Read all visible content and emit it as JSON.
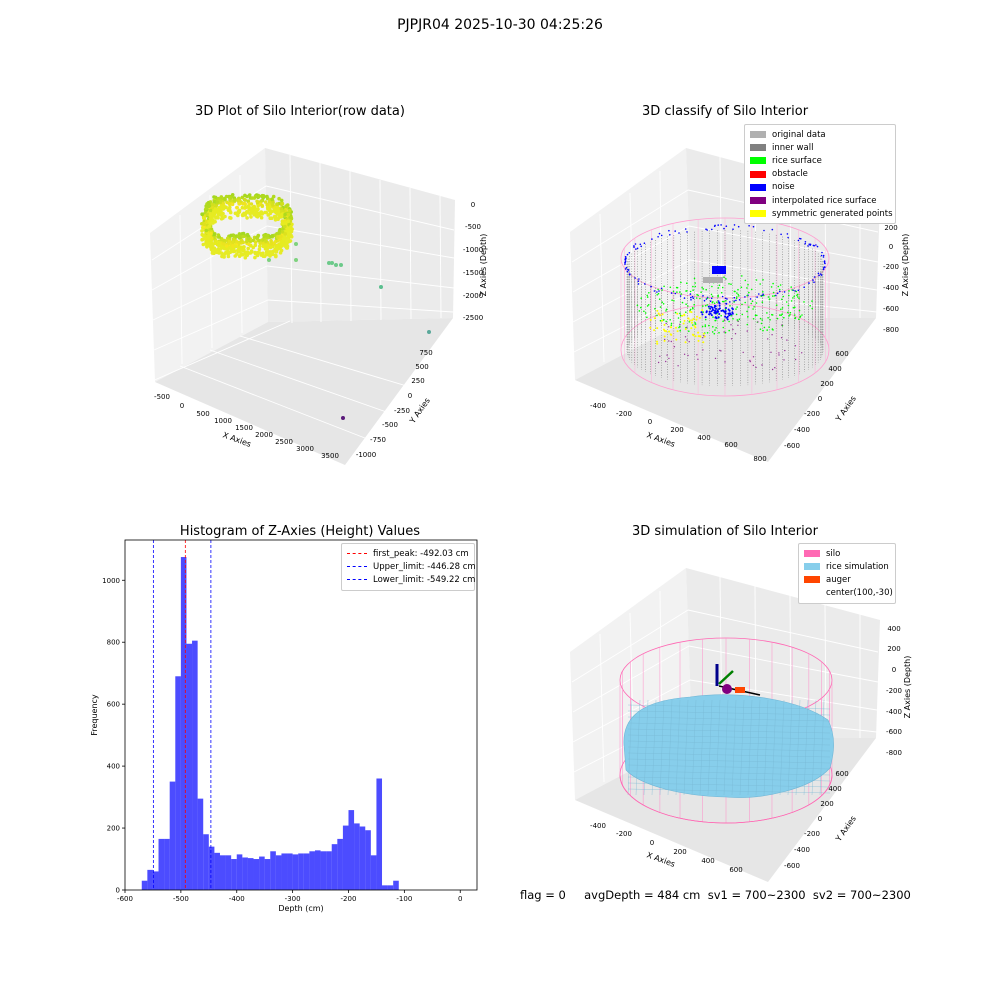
{
  "suptitle": "PJPJR04 2025-10-30 04:25:26",
  "status_text": "flag = 0     avgDepth = 484 cm  sv1 = 700~2300  sv2 = 700~2300",
  "colors": {
    "hist": "#0000ff",
    "peak": "#ff0000",
    "limit": "#0000ff",
    "silo": "#ff69b4",
    "rice": "#87ceeb",
    "auger": "#ff4500"
  },
  "chart_data": [
    {
      "type": "scatter",
      "subtype": "3d",
      "title": "3D Plot of Silo Interior(row data)",
      "xlabel": "X Axies",
      "ylabel": "Y Axies",
      "zlabel": "Z Axies (Depth)",
      "x_ticks": [
        "-500",
        "0",
        "500",
        "1000",
        "1500",
        "2000",
        "2500",
        "3000",
        "3500"
      ],
      "y_ticks": [
        "-1000",
        "-750",
        "-500",
        "-250",
        "0",
        "250",
        "500",
        "750"
      ],
      "z_ticks": [
        "-2500",
        "-2000",
        "-1500",
        "-1000",
        "-500",
        "0"
      ]
    },
    {
      "type": "scatter",
      "subtype": "3d",
      "title": "3D classify of Silo Interior",
      "xlabel": "X Axies",
      "ylabel": "Y Axies",
      "zlabel": "Z Axies (Depth)",
      "x_ticks": [
        "-400",
        "-200",
        "0",
        "200",
        "400",
        "600",
        "800"
      ],
      "y_ticks": [
        "-600",
        "-400",
        "-200",
        "0",
        "200",
        "400",
        "600"
      ],
      "z_ticks": [
        "-800",
        "-600",
        "-400",
        "-200",
        "0",
        "200"
      ],
      "legend": [
        {
          "label": "original data",
          "color": "#b0b0b0"
        },
        {
          "label": "inner wall",
          "color": "#808080"
        },
        {
          "label": "rice surface",
          "color": "#00ff00"
        },
        {
          "label": "obstacle",
          "color": "#ff0000"
        },
        {
          "label": "noise",
          "color": "#0000ff"
        },
        {
          "label": "interpolated rice surface",
          "color": "#800080"
        },
        {
          "label": "symmetric generated points",
          "color": "#ffff00"
        }
      ]
    },
    {
      "type": "bar",
      "subtype": "histogram",
      "title": "Histogram of Z-Axies (Height) Values",
      "xlabel": "Depth (cm)",
      "ylabel": "Frequency",
      "xlim": [
        -600,
        30
      ],
      "ylim": [
        0,
        1130
      ],
      "x_ticks": [
        -600,
        -500,
        -400,
        -300,
        -200,
        -100,
        0
      ],
      "y_ticks": [
        0,
        200,
        400,
        600,
        800,
        1000
      ],
      "bin_width": 10,
      "bins": [
        {
          "x": -570,
          "value": 30
        },
        {
          "x": -560,
          "value": 65
        },
        {
          "x": -550,
          "value": 60
        },
        {
          "x": -540,
          "value": 165
        },
        {
          "x": -530,
          "value": 165
        },
        {
          "x": -520,
          "value": 350
        },
        {
          "x": -510,
          "value": 690
        },
        {
          "x": -500,
          "value": 1075
        },
        {
          "x": -490,
          "value": 795
        },
        {
          "x": -480,
          "value": 805
        },
        {
          "x": -470,
          "value": 295
        },
        {
          "x": -460,
          "value": 180
        },
        {
          "x": -450,
          "value": 140
        },
        {
          "x": -440,
          "value": 120
        },
        {
          "x": -430,
          "value": 112
        },
        {
          "x": -420,
          "value": 112
        },
        {
          "x": -410,
          "value": 100
        },
        {
          "x": -400,
          "value": 115
        },
        {
          "x": -390,
          "value": 105
        },
        {
          "x": -380,
          "value": 103
        },
        {
          "x": -370,
          "value": 100
        },
        {
          "x": -360,
          "value": 108
        },
        {
          "x": -350,
          "value": 100
        },
        {
          "x": -340,
          "value": 125
        },
        {
          "x": -330,
          "value": 112
        },
        {
          "x": -320,
          "value": 118
        },
        {
          "x": -310,
          "value": 118
        },
        {
          "x": -300,
          "value": 115
        },
        {
          "x": -290,
          "value": 118
        },
        {
          "x": -280,
          "value": 118
        },
        {
          "x": -270,
          "value": 125
        },
        {
          "x": -260,
          "value": 128
        },
        {
          "x": -250,
          "value": 125
        },
        {
          "x": -240,
          "value": 125
        },
        {
          "x": -230,
          "value": 148
        },
        {
          "x": -220,
          "value": 165
        },
        {
          "x": -210,
          "value": 208
        },
        {
          "x": -200,
          "value": 258
        },
        {
          "x": -190,
          "value": 215
        },
        {
          "x": -180,
          "value": 205
        },
        {
          "x": -170,
          "value": 193
        },
        {
          "x": -160,
          "value": 112
        },
        {
          "x": -150,
          "value": 360
        },
        {
          "x": -140,
          "value": 15
        },
        {
          "x": -130,
          "value": 15
        },
        {
          "x": -120,
          "value": 30
        }
      ],
      "lines": [
        {
          "label": "first_peak: -492.03 cm",
          "x": -492.03,
          "color": "#ff0000"
        },
        {
          "label": "Upper_limit: -446.28 cm",
          "x": -446.28,
          "color": "#0000ff"
        },
        {
          "label": "Lower_limit: -549.22 cm",
          "x": -549.22,
          "color": "#0000ff"
        }
      ]
    },
    {
      "type": "scatter",
      "subtype": "3d",
      "title": "3D simulation of Silo Interior",
      "xlabel": "X Axies",
      "ylabel": "Y Axies",
      "zlabel": "Z Axies (Depth)",
      "x_ticks": [
        "-400",
        "-200",
        "0",
        "200",
        "400",
        "600"
      ],
      "y_ticks": [
        "-600",
        "-400",
        "-200",
        "0",
        "200",
        "400",
        "600"
      ],
      "z_ticks": [
        "-800",
        "-600",
        "-400",
        "-200",
        "0",
        "200",
        "400"
      ],
      "legend": [
        {
          "label": "silo",
          "color": "#ff69b4"
        },
        {
          "label": "rice simulation",
          "color": "#87ceeb"
        },
        {
          "label": "auger",
          "color": "#ff4500"
        },
        {
          "label": "center(100,-30)",
          "color": ""
        }
      ]
    }
  ]
}
